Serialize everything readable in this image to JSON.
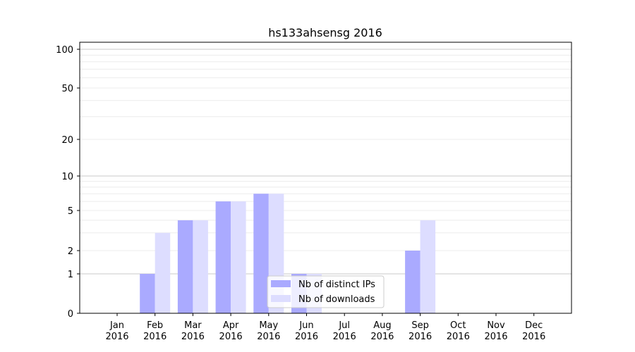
{
  "chart_data": {
    "type": "bar",
    "title": "hs133ahsensg 2016",
    "xlabel": "",
    "ylabel": "",
    "yscale": "symlog",
    "ylim": [
      0,
      110
    ],
    "yticks": [
      0,
      1,
      2,
      5,
      10,
      20,
      50,
      100
    ],
    "grid": true,
    "legend_position": "bottom-center",
    "categories": [
      "Jan\n2016",
      "Feb\n2016",
      "Mar\n2016",
      "Apr\n2016",
      "May\n2016",
      "Jun\n2016",
      "Jul\n2016",
      "Aug\n2016",
      "Sep\n2016",
      "Oct\n2016",
      "Nov\n2016",
      "Dec\n2016"
    ],
    "series": [
      {
        "name": "Nb of distinct IPs",
        "color": "#aaaaff",
        "values": [
          0,
          1,
          4,
          6,
          7,
          1,
          0,
          0,
          2,
          0,
          0,
          0
        ]
      },
      {
        "name": "Nb of downloads",
        "color": "#ddddff",
        "values": [
          0,
          3,
          4,
          6,
          7,
          1,
          0,
          0,
          4,
          0,
          0,
          0
        ]
      }
    ]
  }
}
